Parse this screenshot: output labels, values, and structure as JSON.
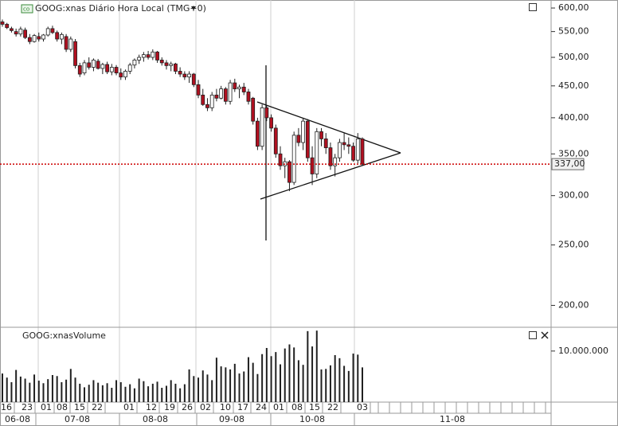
{
  "chart_data": [
    {
      "type": "candlestick",
      "title": "GOOG:xnas Diário Hora Local (TMG+0)",
      "open": [
        570,
        565,
        556,
        550,
        545,
        553,
        538,
        530,
        540,
        535,
        543,
        556,
        548,
        535,
        540,
        515,
        530,
        485,
        472,
        490,
        482,
        493,
        480,
        487,
        474,
        482,
        472,
        465,
        475,
        486,
        495,
        500,
        505,
        500,
        510,
        495,
        490,
        485,
        488,
        475,
        470,
        465,
        470,
        452,
        435,
        420,
        415,
        435,
        430,
        445,
        425,
        455,
        445,
        448,
        440,
        430,
        395,
        360,
        415,
        400,
        385,
        350,
        335,
        340,
        315,
        375,
        365,
        395,
        345,
        325,
        380,
        370,
        358,
        335,
        345,
        365,
        362,
        360,
        342,
        370
      ],
      "high": [
        575,
        568,
        560,
        556,
        560,
        558,
        545,
        545,
        548,
        545,
        560,
        562,
        552,
        548,
        545,
        540,
        535,
        490,
        495,
        500,
        498,
        497,
        490,
        492,
        488,
        486,
        480,
        478,
        490,
        498,
        505,
        510,
        512,
        515,
        512,
        500,
        495,
        492,
        490,
        482,
        475,
        475,
        472,
        460,
        445,
        430,
        440,
        445,
        450,
        448,
        460,
        462,
        452,
        455,
        445,
        432,
        400,
        420,
        418,
        405,
        390,
        360,
        345,
        342,
        380,
        385,
        400,
        398,
        360,
        385,
        385,
        378,
        365,
        350,
        370,
        378,
        372,
        365,
        378,
        372
      ],
      "low": [
        560,
        555,
        548,
        540,
        540,
        535,
        525,
        528,
        530,
        530,
        540,
        545,
        530,
        525,
        510,
        510,
        480,
        465,
        468,
        478,
        475,
        478,
        470,
        470,
        468,
        468,
        460,
        460,
        470,
        480,
        488,
        492,
        496,
        495,
        490,
        485,
        478,
        475,
        470,
        465,
        460,
        455,
        448,
        430,
        418,
        410,
        410,
        425,
        428,
        420,
        420,
        440,
        430,
        435,
        420,
        390,
        355,
        355,
        395,
        380,
        345,
        330,
        320,
        305,
        312,
        360,
        355,
        340,
        312,
        320,
        360,
        350,
        330,
        322,
        340,
        355,
        350,
        340,
        338,
        335
      ],
      "close": [
        565,
        558,
        552,
        545,
        555,
        538,
        530,
        542,
        535,
        543,
        556,
        548,
        535,
        544,
        515,
        535,
        485,
        470,
        490,
        482,
        495,
        480,
        487,
        474,
        482,
        472,
        465,
        475,
        486,
        495,
        500,
        505,
        500,
        510,
        495,
        490,
        485,
        488,
        475,
        470,
        465,
        470,
        452,
        435,
        420,
        415,
        435,
        430,
        445,
        425,
        455,
        445,
        448,
        440,
        425,
        395,
        360,
        415,
        400,
        385,
        350,
        335,
        340,
        315,
        375,
        365,
        395,
        345,
        325,
        380,
        370,
        358,
        335,
        345,
        365,
        362,
        360,
        342,
        370,
        337
      ],
      "up_color": "#ffffff",
      "down_color": "#b01020",
      "outline_color": "#202020",
      "ylim": [
        185,
        618
      ],
      "log_scale": true,
      "yticks": [
        {
          "value": 600,
          "label": "600,00"
        },
        {
          "value": 550,
          "label": "550,00"
        },
        {
          "value": 500,
          "label": "500,00"
        },
        {
          "value": 450,
          "label": "450,00"
        },
        {
          "value": 400,
          "label": "400,00"
        },
        {
          "value": 350,
          "label": "350,00"
        },
        {
          "value": 300,
          "label": "300,00"
        },
        {
          "value": 250,
          "label": "250,00"
        },
        {
          "value": 200,
          "label": "200,00"
        }
      ],
      "last_price": {
        "value": 337,
        "label": "337,00"
      },
      "last_price_color": "#cc0000"
    },
    {
      "type": "bar",
      "title": "GOOG:xnasVolume",
      "color": "#202020",
      "values": [
        5600000,
        4800000,
        3900000,
        6300000,
        5000000,
        4600000,
        3800000,
        5400000,
        4200000,
        3700000,
        4500000,
        5300000,
        5100000,
        3900000,
        4400000,
        6500000,
        4800000,
        3600000,
        2900000,
        3400000,
        4300000,
        3800000,
        3300000,
        3700000,
        2800000,
        4300000,
        3900000,
        3000000,
        3500000,
        2700000,
        4600000,
        4100000,
        3100000,
        3600000,
        4000000,
        2800000,
        3200000,
        4300000,
        3600000,
        2700000,
        3500000,
        6400000,
        5100000,
        4800000,
        6200000,
        5400000,
        4300000,
        8700000,
        7000000,
        6800000,
        6400000,
        7500000,
        5600000,
        6000000,
        8800000,
        7700000,
        5500000,
        9400000,
        10600000,
        9000000,
        9800000,
        7400000,
        10500000,
        11300000,
        10700000,
        8200000,
        7300000,
        13900000,
        10900000,
        14000000,
        6400000,
        6500000,
        7200000,
        9200000,
        8600000,
        7100000,
        6100000,
        9500000,
        9300000,
        6800000
      ],
      "ylim": [
        0,
        14500000
      ],
      "yticks": [
        {
          "value": 10000000,
          "label": "10.000.000"
        }
      ],
      "day_labels": [
        "16",
        "23",
        "01",
        "08",
        "15",
        "22",
        "01",
        "12",
        "19",
        "26",
        "02",
        "10",
        "17",
        "24",
        "01",
        "08",
        "15",
        "22",
        "03"
      ],
      "month_labels": [
        "06-08",
        "07-08",
        "08-08",
        "09-08",
        "10-08",
        "11-08"
      ]
    }
  ]
}
